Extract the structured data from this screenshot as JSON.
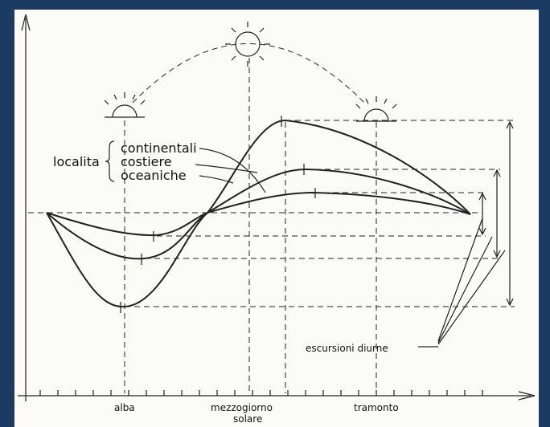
{
  "localita": "localita",
  "curves": [
    "continentali",
    "costiere",
    "oceaniche"
  ],
  "escursioni": "escursioni diurne",
  "x_axis": {
    "alba": "alba",
    "mezzogiorno": [
      "mezzogiorno",
      "solare"
    ],
    "tramonto": "tramonto"
  }
}
